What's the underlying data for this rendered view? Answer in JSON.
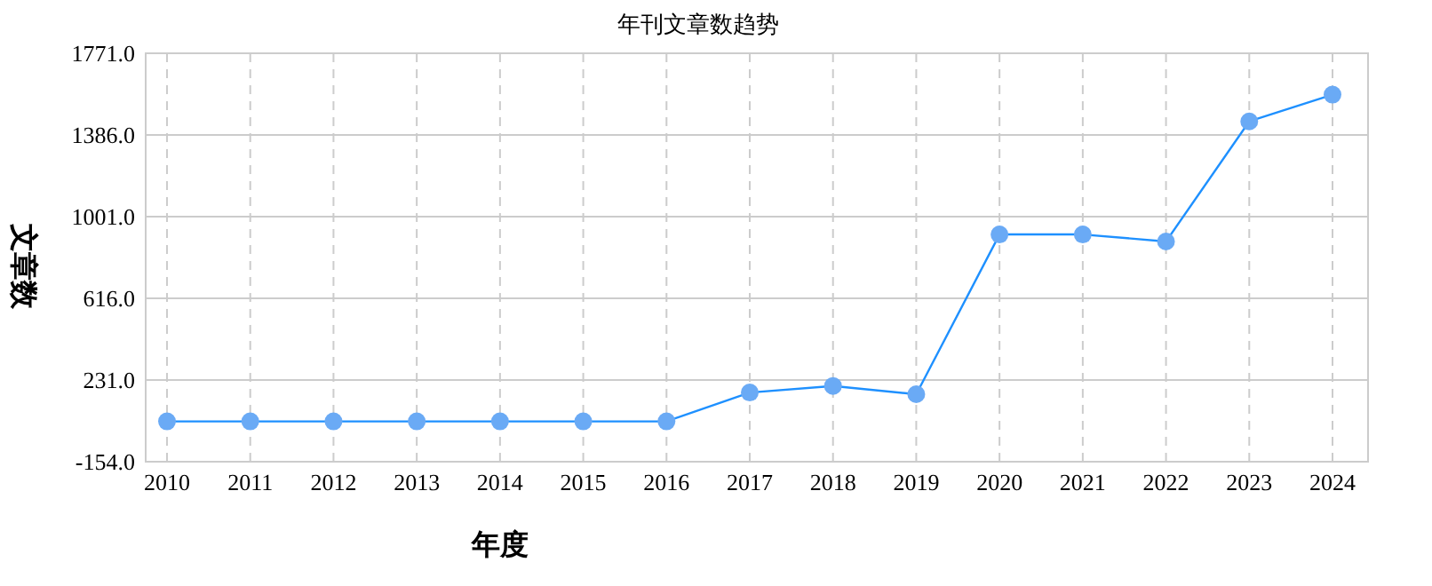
{
  "chart_data": {
    "type": "line",
    "title": "年刊文章数趋势",
    "xlabel": "年度",
    "ylabel": "文章数",
    "categories": [
      "2010",
      "2011",
      "2012",
      "2013",
      "2014",
      "2015",
      "2016",
      "2017",
      "2018",
      "2019",
      "2020",
      "2021",
      "2022",
      "2023",
      "2024"
    ],
    "series": [
      {
        "color": "#1e90ff",
        "values": [
          36,
          36,
          36,
          36,
          36,
          36,
          36,
          172,
          203,
          164,
          917,
          917,
          884,
          1450,
          1576
        ]
      }
    ],
    "ylim": [
      -154,
      1771
    ],
    "yticks": [
      {
        "value": -154,
        "label": "-154.0"
      },
      {
        "value": 231,
        "label": "231.0"
      },
      {
        "value": 616,
        "label": "616.0"
      },
      {
        "value": 1001,
        "label": "1001.0"
      },
      {
        "value": 1386,
        "label": "1386.0"
      },
      {
        "value": 1771,
        "label": "1771.0"
      }
    ],
    "grid": true,
    "marker": "circle",
    "line_style": "solid"
  }
}
